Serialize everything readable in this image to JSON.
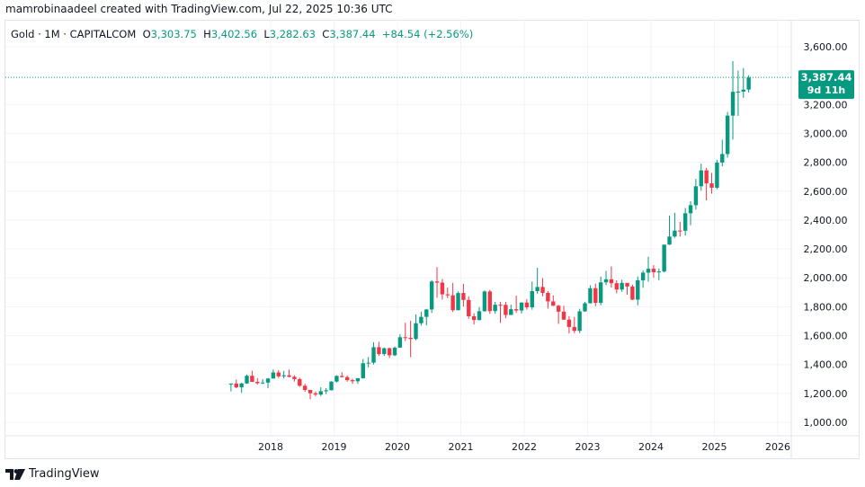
{
  "credit": "mamrobinaadeel created with TradingView.com, Jul 22, 2025 10:36 UTC",
  "legend": {
    "symbol": "Gold · 1M · CAPITALCOM",
    "o_label": "O",
    "o": "3,303.75",
    "h_label": "H",
    "h": "3,402.56",
    "l_label": "L",
    "l": "3,282.63",
    "c_label": "C",
    "c": "3,387.44",
    "change": "+84.54 (+2.56%)"
  },
  "last_price": {
    "price": "3,387.44",
    "countdown": "9d 11h"
  },
  "logo": "TradingView",
  "colors": {
    "up": "#089981",
    "down": "#f23645",
    "grid": "#f0f3fa",
    "text": "#131722"
  },
  "chart_data": {
    "type": "candlestick",
    "title": "Gold · 1M · CAPITALCOM",
    "ylim": [
      900,
      3750
    ],
    "yticks": [
      "1,000.00",
      "1,200.00",
      "1,400.00",
      "1,600.00",
      "1,800.00",
      "2,000.00",
      "2,200.00",
      "2,400.00",
      "2,600.00",
      "2,800.00",
      "3,000.00",
      "3,200.00",
      "3,600.00"
    ],
    "ytick_values": [
      1000,
      1200,
      1400,
      1600,
      1800,
      2000,
      2200,
      2400,
      2600,
      2800,
      3000,
      3200,
      3600
    ],
    "xticks": [
      "2018",
      "2019",
      "2020",
      "2021",
      "2022",
      "2023",
      "2024",
      "2025",
      "2026"
    ],
    "grid": true,
    "last_value": 3387.44,
    "columns": [
      "month",
      "open",
      "high",
      "low",
      "close"
    ],
    "candles": [
      [
        "2017-05",
        1268,
        1270,
        1214,
        1268
      ],
      [
        "2017-06",
        1268,
        1296,
        1236,
        1242
      ],
      [
        "2017-07",
        1242,
        1274,
        1204,
        1269
      ],
      [
        "2017-08",
        1269,
        1331,
        1266,
        1322
      ],
      [
        "2017-09",
        1322,
        1357,
        1279,
        1280
      ],
      [
        "2017-10",
        1280,
        1306,
        1260,
        1271
      ],
      [
        "2017-11",
        1271,
        1299,
        1265,
        1275
      ],
      [
        "2017-12",
        1275,
        1307,
        1236,
        1303
      ],
      [
        "2018-01",
        1303,
        1366,
        1302,
        1345
      ],
      [
        "2018-02",
        1345,
        1361,
        1307,
        1318
      ],
      [
        "2018-03",
        1318,
        1356,
        1303,
        1325
      ],
      [
        "2018-04",
        1325,
        1365,
        1311,
        1315
      ],
      [
        "2018-05",
        1315,
        1326,
        1282,
        1299
      ],
      [
        "2018-06",
        1299,
        1309,
        1246,
        1253
      ],
      [
        "2018-07",
        1253,
        1266,
        1211,
        1224
      ],
      [
        "2018-08",
        1224,
        1221,
        1160,
        1201
      ],
      [
        "2018-09",
        1201,
        1214,
        1180,
        1192
      ],
      [
        "2018-10",
        1192,
        1243,
        1182,
        1215
      ],
      [
        "2018-11",
        1215,
        1237,
        1196,
        1222
      ],
      [
        "2018-12",
        1222,
        1284,
        1221,
        1282
      ],
      [
        "2019-01",
        1282,
        1326,
        1276,
        1321
      ],
      [
        "2019-02",
        1321,
        1347,
        1311,
        1313
      ],
      [
        "2019-03",
        1313,
        1324,
        1281,
        1292
      ],
      [
        "2019-04",
        1292,
        1302,
        1266,
        1284
      ],
      [
        "2019-05",
        1284,
        1306,
        1267,
        1305
      ],
      [
        "2019-06",
        1305,
        1439,
        1302,
        1409
      ],
      [
        "2019-07",
        1409,
        1452,
        1381,
        1413
      ],
      [
        "2019-08",
        1413,
        1555,
        1400,
        1520
      ],
      [
        "2019-09",
        1520,
        1557,
        1459,
        1472
      ],
      [
        "2019-10",
        1472,
        1517,
        1459,
        1513
      ],
      [
        "2019-11",
        1513,
        1516,
        1445,
        1464
      ],
      [
        "2019-12",
        1464,
        1525,
        1458,
        1517
      ],
      [
        "2020-01",
        1517,
        1611,
        1516,
        1589
      ],
      [
        "2020-02",
        1589,
        1689,
        1563,
        1585
      ],
      [
        "2020-03",
        1585,
        1703,
        1451,
        1577
      ],
      [
        "2020-04",
        1577,
        1747,
        1568,
        1686
      ],
      [
        "2020-05",
        1686,
        1765,
        1670,
        1730
      ],
      [
        "2020-06",
        1730,
        1785,
        1671,
        1781
      ],
      [
        "2020-07",
        1781,
        1984,
        1757,
        1975
      ],
      [
        "2020-08",
        1975,
        2075,
        1863,
        1967
      ],
      [
        "2020-09",
        1967,
        1992,
        1849,
        1886
      ],
      [
        "2020-10",
        1886,
        1933,
        1860,
        1879
      ],
      [
        "2020-11",
        1879,
        1965,
        1764,
        1776
      ],
      [
        "2020-12",
        1776,
        1906,
        1775,
        1895
      ],
      [
        "2021-01",
        1895,
        1959,
        1802,
        1847
      ],
      [
        "2021-02",
        1847,
        1872,
        1717,
        1734
      ],
      [
        "2021-03",
        1734,
        1755,
        1677,
        1708
      ],
      [
        "2021-04",
        1708,
        1798,
        1705,
        1769
      ],
      [
        "2021-05",
        1769,
        1913,
        1766,
        1906
      ],
      [
        "2021-06",
        1906,
        1917,
        1750,
        1770
      ],
      [
        "2021-07",
        1770,
        1834,
        1751,
        1814
      ],
      [
        "2021-08",
        1814,
        1833,
        1688,
        1813
      ],
      [
        "2021-09",
        1813,
        1834,
        1721,
        1743
      ],
      [
        "2021-10",
        1743,
        1814,
        1746,
        1783
      ],
      [
        "2021-11",
        1783,
        1877,
        1758,
        1774
      ],
      [
        "2021-12",
        1774,
        1831,
        1753,
        1829
      ],
      [
        "2022-01",
        1829,
        1853,
        1780,
        1796
      ],
      [
        "2022-02",
        1796,
        1974,
        1780,
        1908
      ],
      [
        "2022-03",
        1908,
        2070,
        1890,
        1937
      ],
      [
        "2022-04",
        1937,
        1998,
        1872,
        1896
      ],
      [
        "2022-05",
        1896,
        1909,
        1787,
        1837
      ],
      [
        "2022-06",
        1837,
        1879,
        1805,
        1807
      ],
      [
        "2022-07",
        1807,
        1814,
        1681,
        1766
      ],
      [
        "2022-08",
        1766,
        1807,
        1709,
        1711
      ],
      [
        "2022-09",
        1711,
        1735,
        1615,
        1660
      ],
      [
        "2022-10",
        1660,
        1730,
        1617,
        1633
      ],
      [
        "2022-11",
        1633,
        1786,
        1617,
        1768
      ],
      [
        "2022-12",
        1768,
        1833,
        1765,
        1824
      ],
      [
        "2023-01",
        1824,
        1949,
        1823,
        1928
      ],
      [
        "2023-02",
        1928,
        1960,
        1804,
        1827
      ],
      [
        "2023-03",
        1827,
        2009,
        1810,
        1969
      ],
      [
        "2023-04",
        1969,
        2048,
        1950,
        1990
      ],
      [
        "2023-05",
        1990,
        2079,
        1932,
        1963
      ],
      [
        "2023-06",
        1963,
        1983,
        1893,
        1919
      ],
      [
        "2023-07",
        1919,
        1987,
        1903,
        1965
      ],
      [
        "2023-08",
        1965,
        1949,
        1884,
        1940
      ],
      [
        "2023-09",
        1940,
        1953,
        1846,
        1849
      ],
      [
        "2023-10",
        1849,
        2009,
        1810,
        1983
      ],
      [
        "2023-11",
        1983,
        2052,
        1931,
        2036
      ],
      [
        "2023-12",
        2036,
        2146,
        1973,
        2063
      ],
      [
        "2024-01",
        2063,
        2088,
        2001,
        2039
      ],
      [
        "2024-02",
        2039,
        2065,
        1984,
        2044
      ],
      [
        "2024-03",
        2044,
        2222,
        2038,
        2230
      ],
      [
        "2024-04",
        2230,
        2431,
        2228,
        2286
      ],
      [
        "2024-05",
        2286,
        2450,
        2277,
        2327
      ],
      [
        "2024-06",
        2327,
        2387,
        2286,
        2326
      ],
      [
        "2024-07",
        2326,
        2483,
        2293,
        2447
      ],
      [
        "2024-08",
        2447,
        2531,
        2364,
        2503
      ],
      [
        "2024-09",
        2503,
        2685,
        2472,
        2634
      ],
      [
        "2024-10",
        2634,
        2790,
        2603,
        2744
      ],
      [
        "2024-11",
        2744,
        2761,
        2536,
        2654
      ],
      [
        "2024-12",
        2654,
        2726,
        2583,
        2624
      ],
      [
        "2025-01",
        2624,
        2817,
        2614,
        2798
      ],
      [
        "2025-02",
        2798,
        2956,
        2772,
        2857
      ],
      [
        "2025-03",
        2857,
        3148,
        2832,
        3123
      ],
      [
        "2025-04",
        3123,
        3500,
        2957,
        3288
      ],
      [
        "2025-05",
        3288,
        3435,
        3121,
        3289
      ],
      [
        "2025-06",
        3289,
        3452,
        3246,
        3303
      ],
      [
        "2025-07",
        3303.75,
        3402.56,
        3282.63,
        3387.44
      ]
    ]
  }
}
